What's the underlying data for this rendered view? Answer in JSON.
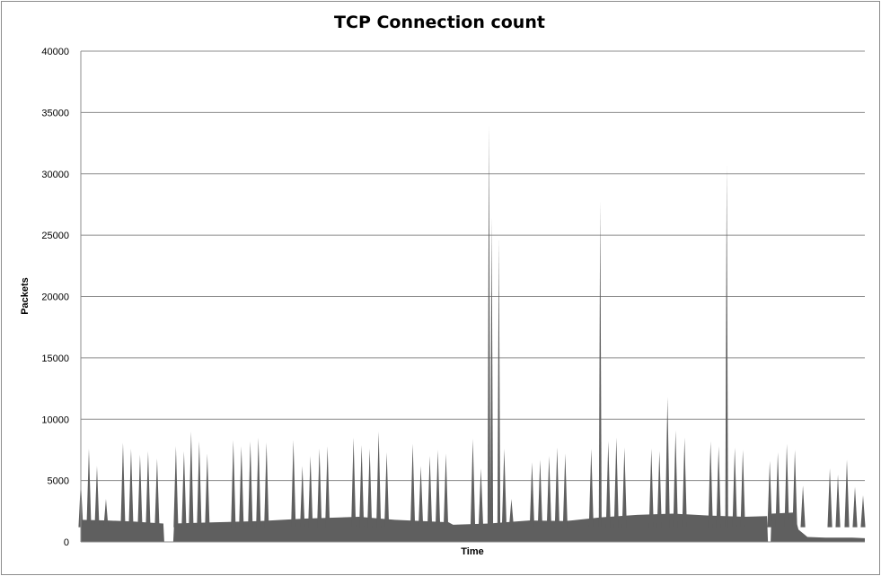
{
  "chart_data": {
    "type": "area",
    "title": "TCP Connection count",
    "xlabel": "Time",
    "ylabel": "Packets",
    "ylim": [
      0,
      40000
    ],
    "yticks": [
      "0",
      "5000",
      "10000",
      "15000",
      "20000",
      "25000",
      "30000",
      "35000",
      "40000"
    ],
    "grid": "horizontal",
    "legend": "none",
    "fill_color": "#5f5f5f",
    "gridline_color": "#8c8c8c",
    "baseline": [
      [
        0,
        1800
      ],
      [
        30,
        1750
      ],
      [
        60,
        1650
      ],
      [
        80,
        1550
      ],
      [
        92,
        1500
      ],
      [
        93,
        0
      ],
      [
        103,
        0
      ],
      [
        104,
        1500
      ],
      [
        150,
        1600
      ],
      [
        200,
        1700
      ],
      [
        250,
        1900
      ],
      [
        310,
        2050
      ],
      [
        350,
        1800
      ],
      [
        410,
        1600
      ],
      [
        415,
        1400
      ],
      [
        455,
        1500
      ],
      [
        500,
        1750
      ],
      [
        540,
        1700
      ],
      [
        580,
        2000
      ],
      [
        620,
        2200
      ],
      [
        660,
        2300
      ],
      [
        700,
        2150
      ],
      [
        740,
        2050
      ],
      [
        765,
        2100
      ],
      [
        766,
        0
      ],
      [
        769,
        0
      ],
      [
        770,
        2300
      ],
      [
        795,
        2400
      ],
      [
        800,
        1000
      ],
      [
        810,
        400
      ],
      [
        830,
        350
      ],
      [
        860,
        350
      ],
      [
        874,
        300
      ]
    ],
    "spikes": [
      {
        "x": 0,
        "y": 5000
      },
      {
        "x": 9,
        "y": 7600
      },
      {
        "x": 18,
        "y": 6200
      },
      {
        "x": 28,
        "y": 3500
      },
      {
        "x": 47,
        "y": 8100
      },
      {
        "x": 56,
        "y": 7600
      },
      {
        "x": 66,
        "y": 7100
      },
      {
        "x": 75,
        "y": 7400
      },
      {
        "x": 85,
        "y": 6800
      },
      {
        "x": 106,
        "y": 7800
      },
      {
        "x": 115,
        "y": 7400
      },
      {
        "x": 123,
        "y": 9000
      },
      {
        "x": 132,
        "y": 8200
      },
      {
        "x": 141,
        "y": 7200
      },
      {
        "x": 170,
        "y": 8300
      },
      {
        "x": 179,
        "y": 7800
      },
      {
        "x": 189,
        "y": 8200
      },
      {
        "x": 198,
        "y": 8500
      },
      {
        "x": 207,
        "y": 8100
      },
      {
        "x": 237,
        "y": 8300
      },
      {
        "x": 247,
        "y": 6200
      },
      {
        "x": 256,
        "y": 7000
      },
      {
        "x": 266,
        "y": 7600
      },
      {
        "x": 275,
        "y": 7800
      },
      {
        "x": 304,
        "y": 8500
      },
      {
        "x": 313,
        "y": 7900
      },
      {
        "x": 322,
        "y": 7600
      },
      {
        "x": 332,
        "y": 9000
      },
      {
        "x": 341,
        "y": 7300
      },
      {
        "x": 370,
        "y": 8000
      },
      {
        "x": 379,
        "y": 6200
      },
      {
        "x": 389,
        "y": 7000
      },
      {
        "x": 398,
        "y": 7500
      },
      {
        "x": 407,
        "y": 7200
      },
      {
        "x": 437,
        "y": 8400
      },
      {
        "x": 446,
        "y": 6000
      },
      {
        "x": 455,
        "y": 34000
      },
      {
        "x": 458,
        "y": 26500
      },
      {
        "x": 466,
        "y": 24800
      },
      {
        "x": 472,
        "y": 7600
      },
      {
        "x": 480,
        "y": 3500
      },
      {
        "x": 503,
        "y": 6500
      },
      {
        "x": 512,
        "y": 6700
      },
      {
        "x": 522,
        "y": 7000
      },
      {
        "x": 531,
        "y": 7700
      },
      {
        "x": 540,
        "y": 7200
      },
      {
        "x": 569,
        "y": 7600
      },
      {
        "x": 579,
        "y": 27800
      },
      {
        "x": 588,
        "y": 8200
      },
      {
        "x": 597,
        "y": 8500
      },
      {
        "x": 606,
        "y": 7700
      },
      {
        "x": 636,
        "y": 7600
      },
      {
        "x": 645,
        "y": 7400
      },
      {
        "x": 654,
        "y": 11800
      },
      {
        "x": 663,
        "y": 9100
      },
      {
        "x": 673,
        "y": 8500
      },
      {
        "x": 702,
        "y": 8200
      },
      {
        "x": 711,
        "y": 7800
      },
      {
        "x": 720,
        "y": 30700
      },
      {
        "x": 729,
        "y": 7700
      },
      {
        "x": 738,
        "y": 7500
      },
      {
        "x": 768,
        "y": 6600
      },
      {
        "x": 777,
        "y": 7300
      },
      {
        "x": 787,
        "y": 8000
      },
      {
        "x": 796,
        "y": 7500
      },
      {
        "x": 805,
        "y": 4600
      },
      {
        "x": 835,
        "y": 6000
      },
      {
        "x": 844,
        "y": 5500
      },
      {
        "x": 854,
        "y": 6700
      },
      {
        "x": 863,
        "y": 4500
      },
      {
        "x": 872,
        "y": 3800
      }
    ]
  }
}
